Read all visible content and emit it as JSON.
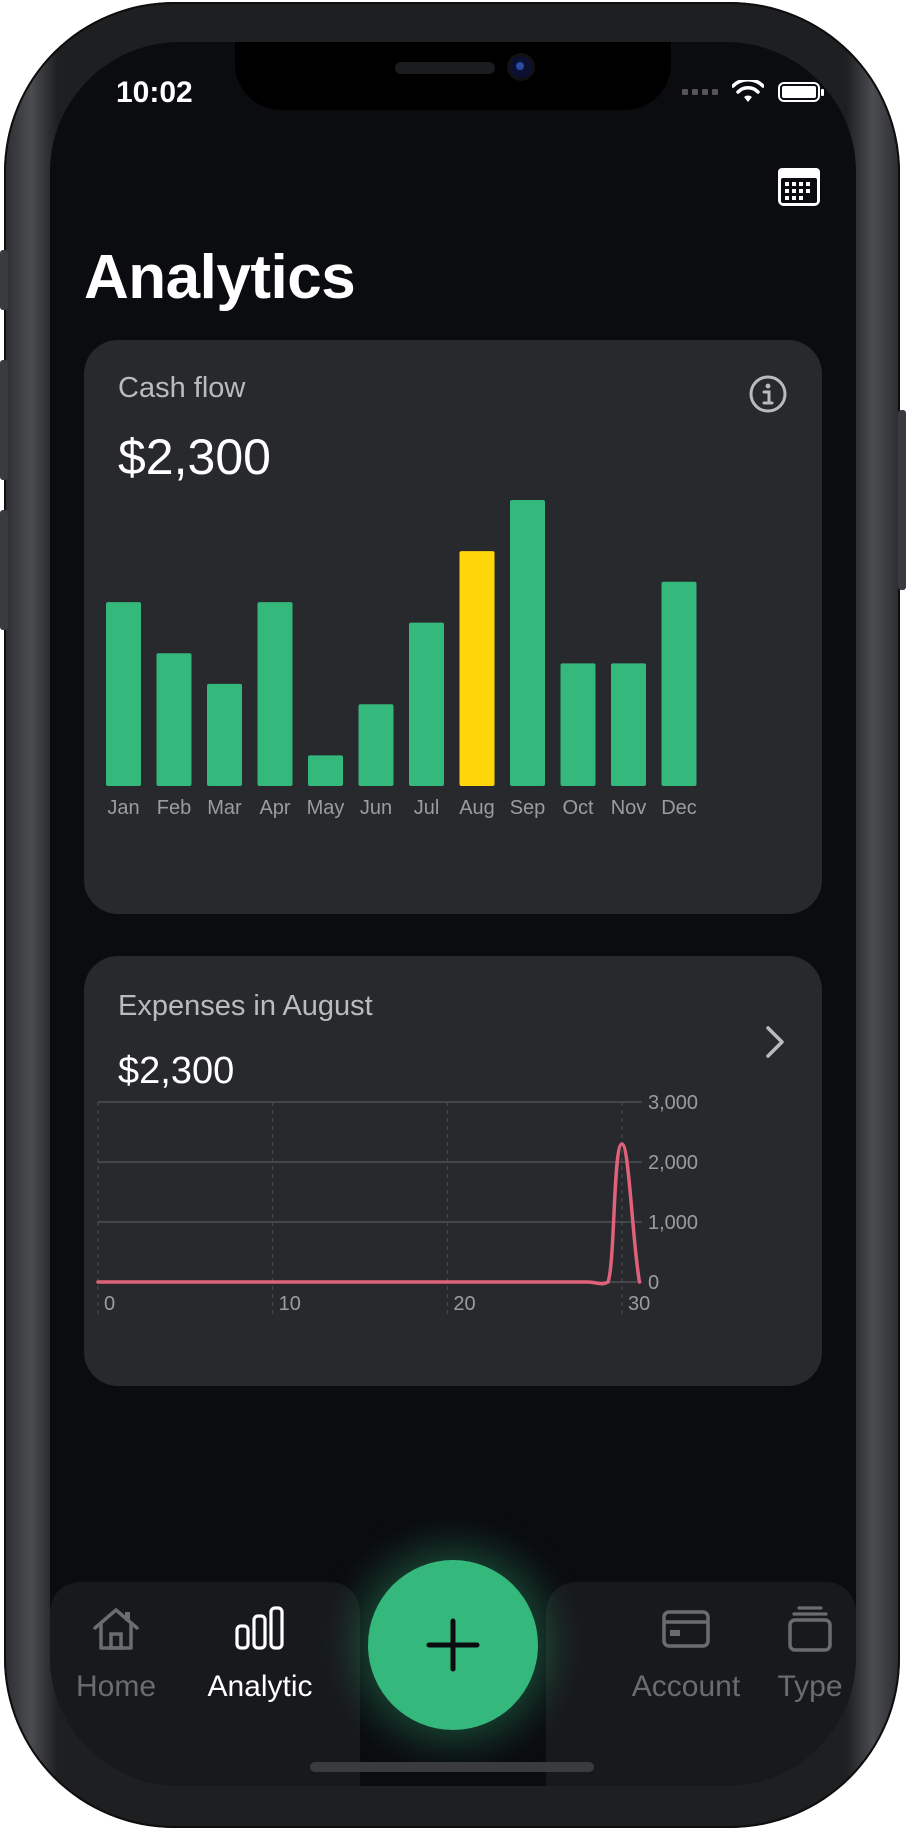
{
  "status_bar": {
    "time": "10:02"
  },
  "page": {
    "title": "Analytics"
  },
  "header": {
    "calendar_icon": "calendar-icon"
  },
  "cash_flow_card": {
    "label": "Cash flow",
    "amount": "$2,300",
    "info_icon": "info-icon"
  },
  "expenses_card": {
    "label": "Expenses in August",
    "amount": "$2,300",
    "chevron_icon": "chevron-right-icon"
  },
  "colors": {
    "accent": "#34b87b",
    "highlight": "#ffd60a",
    "line": "#e0627a",
    "background": "#0b0c10",
    "card": "#28292d"
  },
  "chart_data": [
    {
      "type": "bar",
      "categories": [
        "Jan",
        "Feb",
        "Mar",
        "Apr",
        "May",
        "Jun",
        "Jul",
        "Aug",
        "Sep",
        "Oct",
        "Nov",
        "Dec"
      ],
      "values": [
        180,
        130,
        100,
        180,
        30,
        80,
        160,
        230,
        280,
        120,
        120,
        200
      ],
      "highlighted": "Aug",
      "ylim": [
        0,
        280
      ],
      "grid": false,
      "title": "",
      "xlabel": "",
      "ylabel": ""
    },
    {
      "type": "line",
      "x": [
        0,
        1,
        2,
        3,
        4,
        5,
        6,
        7,
        8,
        9,
        10,
        11,
        12,
        13,
        14,
        15,
        16,
        17,
        18,
        19,
        20,
        21,
        22,
        23,
        24,
        25,
        26,
        27,
        28,
        29,
        30,
        31
      ],
      "series": [
        {
          "values": [
            0,
            0,
            0,
            0,
            0,
            0,
            0,
            0,
            0,
            0,
            0,
            0,
            0,
            0,
            0,
            0,
            0,
            0,
            0,
            0,
            0,
            0,
            0,
            0,
            0,
            0,
            0,
            0,
            0,
            0,
            2300,
            0
          ]
        }
      ],
      "x_ticks": [
        "0",
        "10",
        "20",
        "30"
      ],
      "y_ticks": [
        "0",
        "1,000",
        "2,000",
        "3,000"
      ],
      "xlim": [
        0,
        30
      ],
      "ylim": [
        0,
        3000
      ],
      "grid": true,
      "title": "",
      "xlabel": "",
      "ylabel": ""
    }
  ],
  "tab_bar": {
    "items": [
      {
        "label": "Home",
        "icon": "home-icon",
        "active": false
      },
      {
        "label": "Analytic",
        "icon": "bar-chart-icon",
        "active": true
      },
      {
        "label": "Account",
        "icon": "credit-card-icon",
        "active": false
      },
      {
        "label": "Type",
        "icon": "stack-icon",
        "active": false
      }
    ],
    "add_icon": "plus-icon"
  }
}
